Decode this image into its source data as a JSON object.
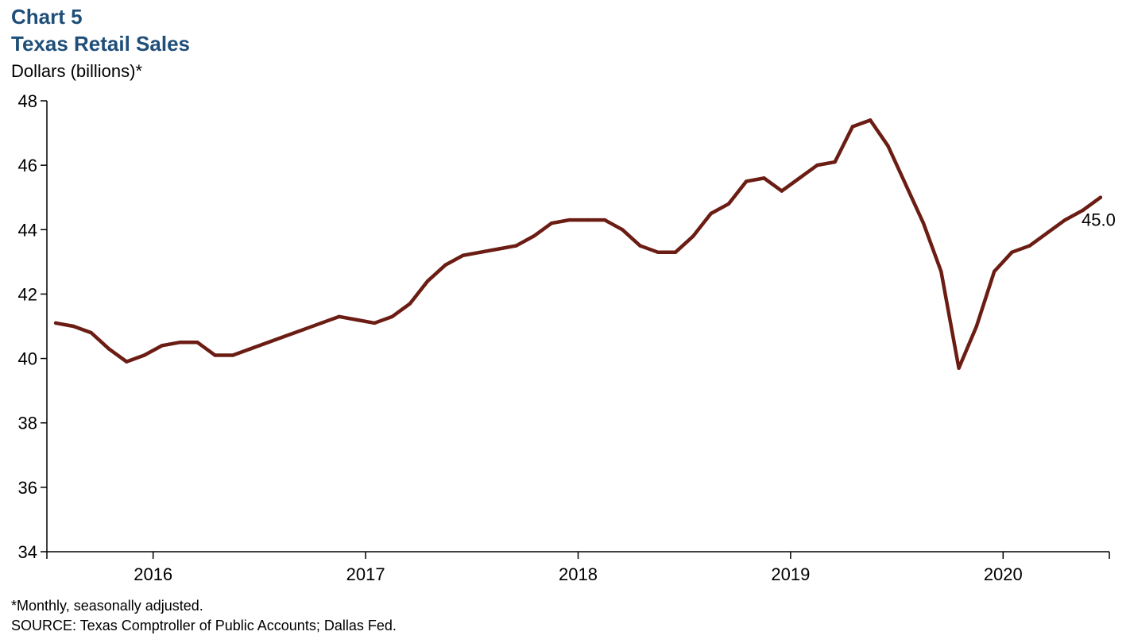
{
  "header": {
    "chart_number": "Chart 5",
    "title": "Texas Retail Sales",
    "y_unit": "Dollars (billions)*"
  },
  "footer": {
    "footnote": "*Monthly, seasonally adjusted.",
    "source": "SOURCE: Texas Comptroller of Public Accounts; Dallas Fed."
  },
  "chart_data": {
    "type": "line",
    "title": "Texas Retail Sales",
    "ylabel": "Dollars (billions)*",
    "xlabel": "",
    "ylim": [
      34,
      48
    ],
    "y_ticks": [
      34,
      36,
      38,
      40,
      42,
      44,
      46,
      48
    ],
    "x_tick_labels": [
      "2016",
      "2017",
      "2018",
      "2019",
      "2020"
    ],
    "grid": false,
    "line_color": "#6b1d14",
    "end_label": "45.0",
    "series": [
      {
        "values": [
          41.1,
          41.0,
          40.8,
          40.3,
          39.9,
          40.1,
          40.4,
          40.5,
          40.5,
          40.1,
          40.1,
          40.3,
          40.5,
          40.7,
          40.9,
          41.1,
          41.3,
          41.2,
          41.1,
          41.3,
          41.7,
          42.4,
          42.9,
          43.2,
          43.3,
          43.4,
          43.5,
          43.8,
          44.2,
          44.3,
          44.3,
          44.3,
          44.0,
          43.5,
          43.3,
          43.3,
          43.8,
          44.5,
          44.8,
          45.5,
          45.6,
          45.2,
          45.6,
          46.0,
          46.1,
          47.2,
          47.4,
          46.6,
          45.4,
          44.2,
          42.7,
          39.7,
          41.0,
          42.7,
          43.3,
          43.5,
          43.9,
          44.3,
          44.6,
          45.0
        ]
      }
    ],
    "period": {
      "frequency": "monthly",
      "first": "2015-07",
      "last": "2020-06"
    }
  }
}
